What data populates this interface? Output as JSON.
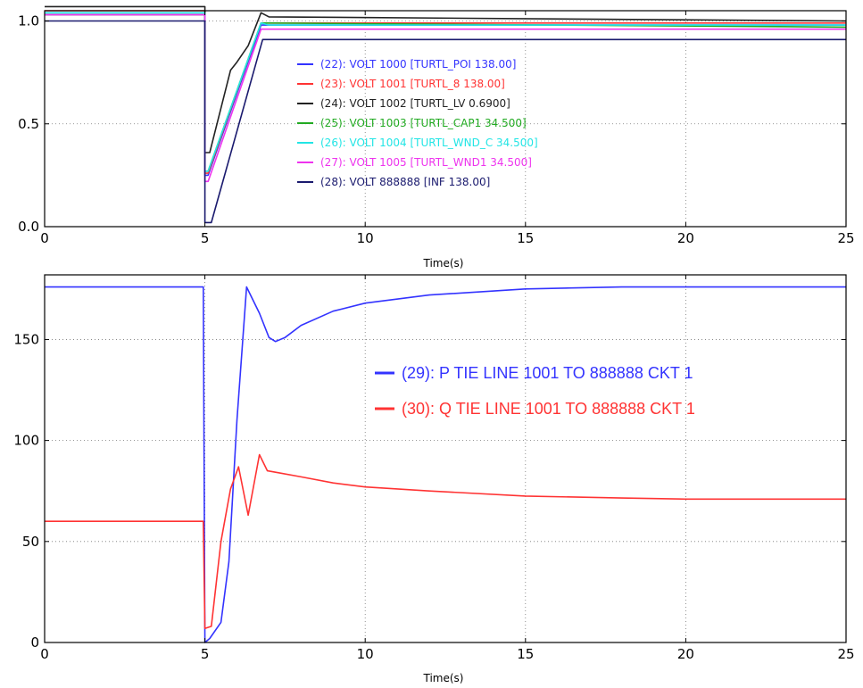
{
  "chart_data": [
    {
      "type": "line",
      "xlabel": "Time(s)",
      "xlim": [
        0,
        25
      ],
      "ylim": [
        0,
        1.05
      ],
      "xticks": [
        0,
        5,
        10,
        15,
        20,
        25
      ],
      "yticks": [
        0.0,
        0.5,
        1.0
      ],
      "xtick_labels": [
        "0",
        "5",
        "10",
        "15",
        "20",
        "25"
      ],
      "ytick_labels": [
        "0.0",
        "0.5",
        "1.0"
      ],
      "grid": true,
      "legend_position": "center-right",
      "series": [
        {
          "name": "(22): VOLT 1000 [TURTL_POI 138.00]",
          "color": "#3333ff",
          "x": [
            0,
            5,
            5,
            5.1,
            6.75,
            7,
            25
          ],
          "y": [
            1.04,
            1.04,
            0.25,
            0.25,
            0.98,
            0.98,
            0.98
          ]
        },
        {
          "name": "(23): VOLT 1001 [TURTL_8 138.00]",
          "color": "#ff3333",
          "x": [
            0,
            5,
            5,
            5.1,
            6.75,
            7,
            25
          ],
          "y": [
            1.05,
            1.05,
            0.26,
            0.26,
            0.99,
            0.99,
            0.99
          ]
        },
        {
          "name": "(24): VOLT 1002 [TURTL_LV 0.6900]",
          "color": "#222222",
          "x": [
            0,
            5,
            5,
            5.15,
            5.8,
            6,
            6.35,
            6.75,
            7,
            25
          ],
          "y": [
            1.07,
            1.07,
            0.36,
            0.36,
            0.76,
            0.8,
            0.88,
            1.04,
            1.02,
            1.0
          ]
        },
        {
          "name": "(25): VOLT 1003 [TURTL_CAP1 34.500]",
          "color": "#22aa22",
          "x": [
            0,
            5,
            5,
            5.1,
            6.75,
            7,
            25
          ],
          "y": [
            1.03,
            1.03,
            0.27,
            0.27,
            0.99,
            0.99,
            0.97
          ]
        },
        {
          "name": "(26): VOLT 1004 [TURTL_WND_C 34.500]",
          "color": "#22e5e5",
          "x": [
            0,
            5,
            5,
            5.1,
            6.75,
            7,
            25
          ],
          "y": [
            1.04,
            1.04,
            0.27,
            0.27,
            0.99,
            0.98,
            0.98
          ]
        },
        {
          "name": "(27): VOLT 1005 [TURTL_WND1 34.500]",
          "color": "#ee33ee",
          "x": [
            0,
            5,
            5,
            5.1,
            6.75,
            7,
            25
          ],
          "y": [
            1.03,
            1.03,
            0.22,
            0.22,
            0.96,
            0.96,
            0.96
          ]
        },
        {
          "name": "(28): VOLT 888888 [INF 138.00]",
          "color": "#1a1a6e",
          "x": [
            0,
            5,
            5,
            5.2,
            6.8,
            7,
            25
          ],
          "y": [
            1.0,
            1.0,
            0.02,
            0.02,
            0.91,
            0.91,
            0.91
          ]
        }
      ]
    },
    {
      "type": "line",
      "xlabel": "Time(s)",
      "xlim": [
        0,
        25
      ],
      "ylim": [
        0,
        182
      ],
      "xticks": [
        0,
        5,
        10,
        15,
        20,
        25
      ],
      "yticks": [
        0,
        50,
        100,
        150
      ],
      "xtick_labels": [
        "0",
        "5",
        "10",
        "15",
        "20",
        "25"
      ],
      "ytick_labels": [
        "0",
        "50",
        "100",
        "150"
      ],
      "grid": true,
      "legend_position": "center-right",
      "series": [
        {
          "name": "(29): P TIE LINE 1001 TO 888888 CKT 1",
          "color": "#3333ff",
          "x": [
            0,
            4.95,
            5,
            5.15,
            5.5,
            5.75,
            6.0,
            6.3,
            6.7,
            7.0,
            7.2,
            7.5,
            8,
            9,
            10,
            12,
            15,
            18,
            20,
            22,
            25
          ],
          "y": [
            176,
            176,
            0,
            2,
            10,
            40,
            110,
            176,
            163,
            151,
            149,
            151,
            157,
            164,
            168,
            172,
            175,
            176,
            176,
            176,
            176
          ]
        },
        {
          "name": "(30): Q TIE LINE 1001 TO 888888 CKT 1",
          "color": "#ff3333",
          "x": [
            0,
            4.95,
            5,
            5.2,
            5.5,
            5.8,
            6.05,
            6.35,
            6.7,
            6.95,
            7.3,
            8,
            9,
            10,
            12,
            15,
            18,
            20,
            22,
            25
          ],
          "y": [
            60,
            60,
            7,
            8,
            50,
            76,
            87,
            63,
            93,
            85,
            84,
            82,
            79,
            77,
            75,
            72.5,
            71.5,
            71,
            71,
            71
          ]
        }
      ]
    }
  ]
}
